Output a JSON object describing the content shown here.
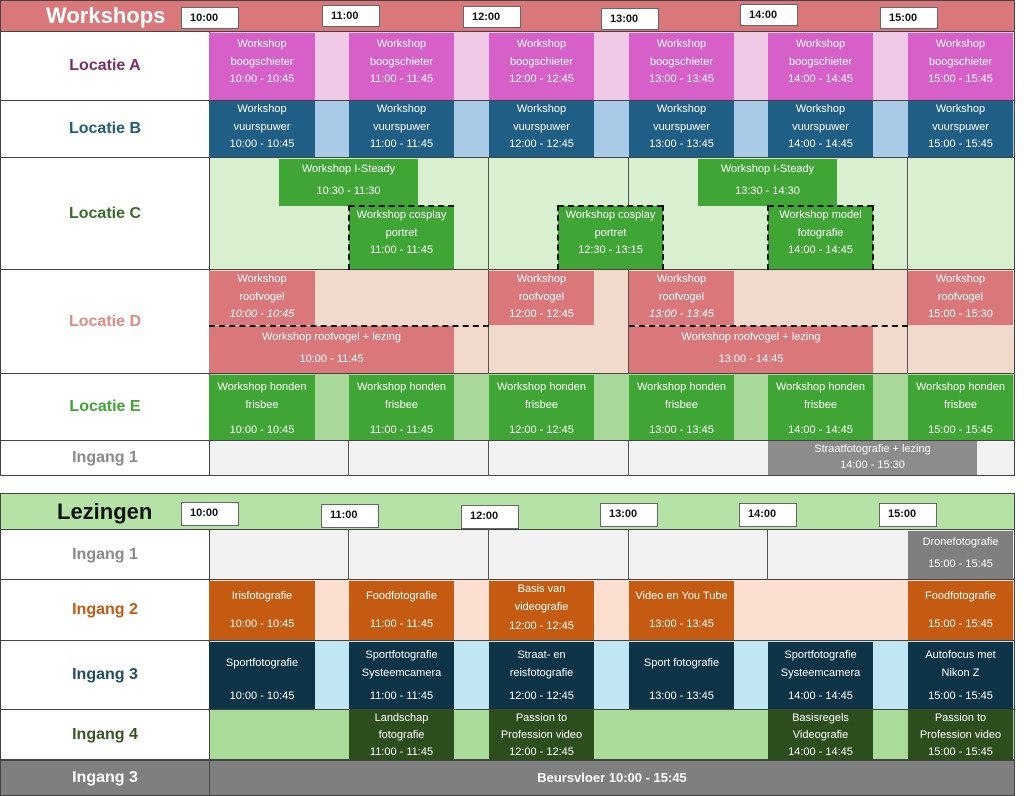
{
  "workshops": {
    "title": "Workshops",
    "times": [
      "10:00",
      "11:00",
      "12:00",
      "13:00",
      "14:00",
      "15:00"
    ],
    "rows": [
      {
        "label": "Locatie A",
        "color": "#7b3060"
      },
      {
        "label": "Locatie B",
        "color": "#1f5c7a"
      },
      {
        "label": "Locatie C",
        "color": "#3a6b2a"
      },
      {
        "label": "Locatie D",
        "color": "#e08a84"
      },
      {
        "label": "Locatie E",
        "color": "#3fa535"
      },
      {
        "label": "Ingang 1",
        "color": "#8a8a8a"
      }
    ],
    "locatie_a": [
      {
        "title": "Workshop boogschieter",
        "time": "10:00 - 10:45"
      },
      {
        "title": "Workshop boogschieter",
        "time": "11:00 - 11:45"
      },
      {
        "title": "Workshop boogschieter",
        "time": "12:00 - 12:45"
      },
      {
        "title": "Workshop boogschieter",
        "time": "13:00 - 13:45"
      },
      {
        "title": "Workshop boogschieter",
        "time": "14:00 - 14:45"
      },
      {
        "title": "Workshop boogschieter",
        "time": "15:00 - 15:45"
      }
    ],
    "locatie_b": [
      {
        "title": "Workshop vuurspuwer",
        "time": "10:00 - 10:45"
      },
      {
        "title": "Workshop vuurspuwer",
        "time": "11:00 - 11:45"
      },
      {
        "title": "Workshop vuurspuwer",
        "time": "12:00 - 12:45"
      },
      {
        "title": "Workshop vuurspuwer",
        "time": "13:00 - 13:45"
      },
      {
        "title": "Workshop vuurspuwer",
        "time": "14:00 - 14:45"
      },
      {
        "title": "Workshop vuurspuwer",
        "time": "15:00 - 15:45"
      }
    ],
    "locatie_c": [
      {
        "title": "Workshop I-Steady",
        "time": "10:30 - 11:30"
      },
      {
        "title": "Workshop cosplay portret",
        "time": "11:00 - 11:45"
      },
      {
        "title": "Workshop cosplay portret",
        "time": "12:30 - 13:15"
      },
      {
        "title": "Workshop I-Steady",
        "time": "13:30 - 14:30"
      },
      {
        "title": "Workshop model fotografie",
        "time": "14:00 - 14:45"
      }
    ],
    "locatie_d": [
      {
        "title": "Workshop roofvogel",
        "time": "10:00 - 10:45"
      },
      {
        "title": "Workshop roofvogel",
        "time": "12:00 - 12:45"
      },
      {
        "title": "Workshop roofvogel",
        "time": "13:00 - 13:45"
      },
      {
        "title": "Workshop roofvogel",
        "time": "15:00 - 15:30"
      },
      {
        "title": "Workshop roofvogel + lezing",
        "time": "10:00 - 11:45"
      },
      {
        "title": "Workshop roofvogel + lezing",
        "time": "13:00 - 14:45"
      }
    ],
    "locatie_e": [
      {
        "title": "Workshop honden frisbee",
        "time": "10:00 - 10:45"
      },
      {
        "title": "Workshop honden frisbee",
        "time": "11:00 - 11:45"
      },
      {
        "title": "Workshop honden frisbee",
        "time": "12:00 - 12:45"
      },
      {
        "title": "Workshop honden frisbee",
        "time": "13:00 - 13:45"
      },
      {
        "title": "Workshop honden frisbee",
        "time": "14:00 - 14:45"
      },
      {
        "title": "Workshop honden frisbee",
        "time": "15:00 - 15:45"
      }
    ],
    "ingang_1": [
      {
        "title": "Straatfotografie + lezing",
        "time": "14:00 - 15:30"
      }
    ]
  },
  "lezingen": {
    "title": "Lezingen",
    "times": [
      "10:00",
      "11:00",
      "12:00",
      "13:00",
      "14:00",
      "15:00"
    ],
    "rows": [
      {
        "label": "Ingang 1",
        "color": "#8a8a8a"
      },
      {
        "label": "Ingang 2",
        "color": "#c55a11"
      },
      {
        "label": "Ingang 3",
        "color": "#1f4e63"
      },
      {
        "label": "Ingang 4",
        "color": "#375623"
      }
    ],
    "ingang_1": [
      {
        "title": "Dronefotografie",
        "time": "15:00 - 15:45"
      }
    ],
    "ingang_2": [
      {
        "title": "Irisfotografie",
        "time": "10:00 - 10:45"
      },
      {
        "title": "Foodfotografie",
        "time": "11:00 - 11:45"
      },
      {
        "title": "Basis van videografie",
        "time": "12:00 - 12:45"
      },
      {
        "title": "Video en You Tube",
        "time": "13:00 - 13:45"
      },
      {
        "title": "Foodfotografie",
        "time": "15:00 - 15:45"
      }
    ],
    "ingang_3": [
      {
        "title": "Sportfotografie",
        "time": "10:00 - 10:45"
      },
      {
        "title": "Sportfotografie Systeemcamera",
        "time": "11:00 - 11:45"
      },
      {
        "title": "Straat- en reisfotografie",
        "time": "12:00 - 12:45"
      },
      {
        "title": "Sport fotografie",
        "time": "13:00 - 13:45"
      },
      {
        "title": "Sportfotografie Systeemcamera",
        "time": "14:00 - 14:45"
      },
      {
        "title": "Autofocus met Nikon Z",
        "time": "15:00 - 15:45"
      }
    ],
    "ingang_4": [
      {
        "title": "Landschap fotografie",
        "time": "11:00 - 11:45"
      },
      {
        "title": "Passion to Profession video",
        "time": "12:00 - 12:45"
      },
      {
        "title": "Basisregels Videografie",
        "time": "14:00 - 14:45"
      },
      {
        "title": "Passion to Profession video",
        "time": "15:00 - 15:45"
      }
    ],
    "footer": {
      "label": "Ingang 3",
      "text": "Beursvloer 10:00 - 15:45"
    }
  }
}
